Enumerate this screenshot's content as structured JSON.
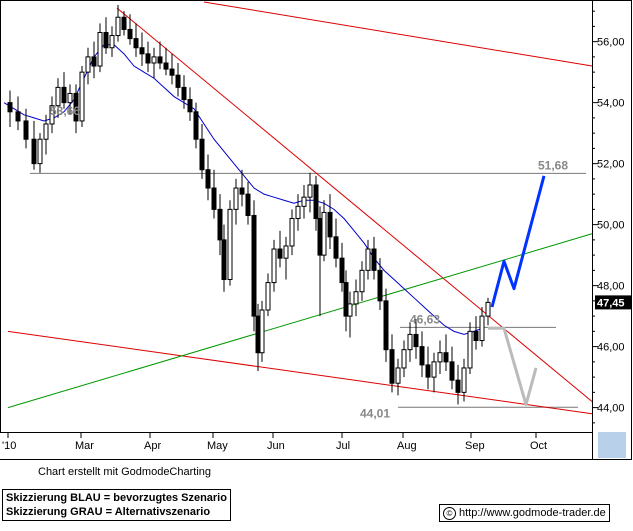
{
  "chart_data": {
    "type": "candlestick",
    "yaxis": {
      "side": "right",
      "ticks": [
        "56,00",
        "54,00",
        "52,00",
        "50,00",
        "48,00",
        "46,00",
        "44,00"
      ],
      "tick_values": [
        56,
        54,
        52,
        50,
        48,
        46,
        44
      ],
      "ylim": [
        43.2,
        57.3
      ]
    },
    "xaxis": {
      "labels": [
        "'10",
        "Mar",
        "Apr",
        "May",
        "Jun",
        "Jul",
        "Aug",
        "Sep",
        "Oct"
      ]
    },
    "current_price": {
      "label": "47,45",
      "value": 47.45
    },
    "annotations": [
      {
        "text": "51,68",
        "value": 51.68
      },
      {
        "text": "46,63",
        "value": 46.63
      },
      {
        "text": "44,01",
        "value": 44.01
      },
      {
        "text": "53,66",
        "value": 53.66
      }
    ],
    "horizontal_levels": [
      51.68,
      46.63,
      44.01
    ],
    "moving_average": [
      [
        0,
        54.0
      ],
      [
        10,
        53.8
      ],
      [
        20,
        53.6
      ],
      [
        30,
        53.5
      ],
      [
        40,
        53.4
      ],
      [
        50,
        53.5
      ],
      [
        60,
        53.7
      ],
      [
        70,
        54.1
      ],
      [
        80,
        54.8
      ],
      [
        90,
        55.5
      ],
      [
        100,
        55.9
      ],
      [
        110,
        55.9
      ],
      [
        120,
        55.6
      ],
      [
        130,
        55.2
      ],
      [
        140,
        55.0
      ],
      [
        150,
        54.8
      ],
      [
        160,
        54.5
      ],
      [
        170,
        54.2
      ],
      [
        180,
        54.0
      ],
      [
        190,
        53.8
      ],
      [
        200,
        53.3
      ],
      [
        210,
        52.8
      ],
      [
        220,
        52.4
      ],
      [
        230,
        52.0
      ],
      [
        240,
        51.6
      ],
      [
        250,
        51.2
      ],
      [
        260,
        51.0
      ],
      [
        270,
        50.9
      ],
      [
        280,
        50.8
      ],
      [
        290,
        50.7
      ],
      [
        300,
        50.8
      ],
      [
        310,
        50.8
      ],
      [
        320,
        50.7
      ],
      [
        330,
        50.5
      ],
      [
        340,
        50.2
      ],
      [
        350,
        49.8
      ],
      [
        360,
        49.4
      ],
      [
        370,
        48.9
      ],
      [
        380,
        48.5
      ],
      [
        390,
        48.2
      ],
      [
        400,
        47.9
      ],
      [
        410,
        47.6
      ],
      [
        420,
        47.3
      ],
      [
        430,
        47.0
      ],
      [
        440,
        46.7
      ],
      [
        450,
        46.5
      ],
      [
        460,
        46.4
      ],
      [
        470,
        46.5
      ],
      [
        478,
        46.6
      ]
    ],
    "candles": [
      [
        6,
        54.0,
        54.4,
        53.2,
        53.7
      ],
      [
        14,
        53.7,
        54.2,
        53.1,
        53.4
      ],
      [
        22,
        53.4,
        53.8,
        52.5,
        52.8
      ],
      [
        30,
        52.8,
        53.4,
        51.8,
        52.0
      ],
      [
        36,
        52.0,
        53.0,
        51.7,
        52.8
      ],
      [
        42,
        52.8,
        53.6,
        52.3,
        53.3
      ],
      [
        48,
        53.3,
        54.2,
        53.0,
        53.9
      ],
      [
        54,
        53.9,
        54.8,
        53.5,
        54.5
      ],
      [
        60,
        54.5,
        55.0,
        53.8,
        54.0
      ],
      [
        66,
        54.0,
        54.6,
        53.6,
        54.3
      ],
      [
        72,
        54.3,
        54.6,
        53.0,
        53.4
      ],
      [
        78,
        53.4,
        55.2,
        53.2,
        55.0
      ],
      [
        84,
        55.0,
        55.8,
        54.6,
        55.5
      ],
      [
        90,
        55.5,
        56.0,
        54.8,
        55.2
      ],
      [
        96,
        55.2,
        56.6,
        55.0,
        56.3
      ],
      [
        102,
        56.3,
        56.8,
        55.6,
        55.8
      ],
      [
        108,
        55.8,
        56.5,
        55.5,
        56.2
      ],
      [
        114,
        56.2,
        57.2,
        56.0,
        56.8
      ],
      [
        120,
        56.8,
        57.0,
        56.2,
        56.4
      ],
      [
        126,
        56.4,
        56.9,
        55.9,
        56.1
      ],
      [
        132,
        56.1,
        56.6,
        55.5,
        55.8
      ],
      [
        138,
        55.8,
        56.3,
        55.2,
        55.6
      ],
      [
        144,
        55.6,
        56.0,
        55.0,
        55.3
      ],
      [
        150,
        55.3,
        55.8,
        54.8,
        55.5
      ],
      [
        156,
        55.5,
        56.0,
        55.1,
        55.3
      ],
      [
        162,
        55.3,
        55.8,
        54.9,
        55.1
      ],
      [
        168,
        55.1,
        55.6,
        54.6,
        54.9
      ],
      [
        174,
        54.9,
        55.3,
        54.2,
        54.5
      ],
      [
        180,
        54.5,
        54.9,
        53.8,
        54.1
      ],
      [
        186,
        54.1,
        54.5,
        53.4,
        53.7
      ],
      [
        192,
        53.7,
        54.0,
        52.5,
        52.8
      ],
      [
        198,
        52.8,
        53.3,
        51.5,
        51.8
      ],
      [
        204,
        51.8,
        52.3,
        50.8,
        51.2
      ],
      [
        210,
        51.2,
        51.8,
        50.2,
        50.5
      ],
      [
        216,
        50.5,
        51.0,
        49.0,
        49.5
      ],
      [
        220,
        49.5,
        50.0,
        47.8,
        48.2
      ],
      [
        226,
        48.2,
        50.8,
        48.0,
        50.5
      ],
      [
        232,
        50.5,
        51.5,
        50.0,
        51.2
      ],
      [
        238,
        51.2,
        51.8,
        50.6,
        51.0
      ],
      [
        244,
        51.0,
        51.4,
        50.0,
        50.3
      ],
      [
        250,
        50.3,
        50.8,
        46.5,
        47.0
      ],
      [
        254,
        47.0,
        47.4,
        45.2,
        45.8
      ],
      [
        258,
        45.8,
        47.5,
        45.5,
        47.2
      ],
      [
        264,
        47.2,
        48.4,
        47.0,
        48.1
      ],
      [
        270,
        48.1,
        49.5,
        47.8,
        49.2
      ],
      [
        276,
        49.2,
        49.8,
        48.6,
        48.9
      ],
      [
        282,
        48.9,
        49.6,
        48.2,
        49.3
      ],
      [
        288,
        49.3,
        50.5,
        49.0,
        50.2
      ],
      [
        294,
        50.2,
        51.0,
        49.8,
        50.6
      ],
      [
        300,
        50.6,
        51.3,
        50.2,
        50.9
      ],
      [
        306,
        50.9,
        51.7,
        50.4,
        51.3
      ],
      [
        312,
        51.3,
        51.6,
        49.8,
        50.2
      ],
      [
        316,
        50.2,
        50.6,
        47.0,
        49.0
      ],
      [
        320,
        49.0,
        50.8,
        48.8,
        50.4
      ],
      [
        326,
        50.4,
        51.0,
        49.2,
        49.6
      ],
      [
        332,
        49.6,
        50.2,
        48.6,
        48.9
      ],
      [
        338,
        48.9,
        49.4,
        47.8,
        48.1
      ],
      [
        342,
        48.1,
        48.5,
        46.5,
        47.0
      ],
      [
        346,
        47.0,
        47.8,
        46.3,
        47.4
      ],
      [
        352,
        47.4,
        48.2,
        47.0,
        47.8
      ],
      [
        358,
        47.8,
        48.8,
        47.5,
        48.5
      ],
      [
        364,
        48.5,
        49.5,
        48.2,
        49.2
      ],
      [
        370,
        49.2,
        49.6,
        48.2,
        48.5
      ],
      [
        376,
        48.5,
        48.9,
        47.2,
        47.5
      ],
      [
        382,
        47.5,
        47.9,
        45.5,
        45.9
      ],
      [
        388,
        45.9,
        46.4,
        44.5,
        44.8
      ],
      [
        394,
        44.8,
        45.6,
        44.4,
        45.3
      ],
      [
        400,
        45.3,
        46.2,
        45.0,
        45.9
      ],
      [
        406,
        45.9,
        46.8,
        45.5,
        46.4
      ],
      [
        412,
        46.4,
        46.9,
        45.6,
        46.0
      ],
      [
        418,
        46.0,
        46.5,
        45.0,
        45.4
      ],
      [
        424,
        45.4,
        46.0,
        44.6,
        45.0
      ],
      [
        430,
        45.0,
        45.8,
        44.5,
        45.5
      ],
      [
        436,
        45.5,
        46.2,
        45.1,
        45.8
      ],
      [
        442,
        45.8,
        46.4,
        45.2,
        45.5
      ],
      [
        448,
        45.5,
        46.0,
        44.6,
        44.9
      ],
      [
        454,
        44.9,
        45.4,
        44.1,
        44.5
      ],
      [
        460,
        44.5,
        45.6,
        44.2,
        45.3
      ],
      [
        466,
        45.3,
        46.8,
        45.1,
        46.5
      ],
      [
        472,
        46.5,
        47.0,
        45.9,
        46.2
      ],
      [
        478,
        46.2,
        47.3,
        46.0,
        47.0
      ],
      [
        484,
        47.0,
        47.6,
        46.7,
        47.45
      ]
    ],
    "trend_lines": [
      {
        "color": "#dd0000",
        "points": [
          [
            113,
            57.1
          ],
          [
            588,
            44.2
          ]
        ]
      },
      {
        "color": "#dd0000",
        "points": [
          [
            200,
            57.3
          ],
          [
            588,
            55.2
          ]
        ]
      },
      {
        "color": "#dd0000",
        "points": [
          [
            4,
            46.5
          ],
          [
            588,
            43.8
          ]
        ]
      },
      {
        "color": "#009900",
        "points": [
          [
            4,
            44.0
          ],
          [
            588,
            49.7
          ]
        ]
      }
    ],
    "scenario_blue": [
      [
        488,
        47.3
      ],
      [
        500,
        48.8
      ],
      [
        510,
        47.9
      ],
      [
        540,
        51.6
      ]
    ],
    "scenario_gray": [
      [
        484,
        46.6
      ],
      [
        500,
        46.6
      ],
      [
        522,
        44.1
      ],
      [
        532,
        45.3
      ]
    ]
  },
  "footer": {
    "created_with": "Chart erstellt mit GodmodeCharting",
    "legend_blue": "Skizzierung BLAU = bevorzugtes Szenario",
    "legend_gray": "Skizzierung GRAU = Alternativszenario",
    "url": "http://www.godmode-trader.de",
    "copyright_symbol": "©"
  },
  "colors": {
    "candle": "#000000",
    "moving_average": "#0000cc",
    "level_line": "#777777",
    "blue_scenario": "#0033ff",
    "gray_scenario": "#bbbbbb",
    "annotation": "#888888",
    "price_tag_bg": "#000000",
    "price_tag_fg": "#ffffff"
  }
}
